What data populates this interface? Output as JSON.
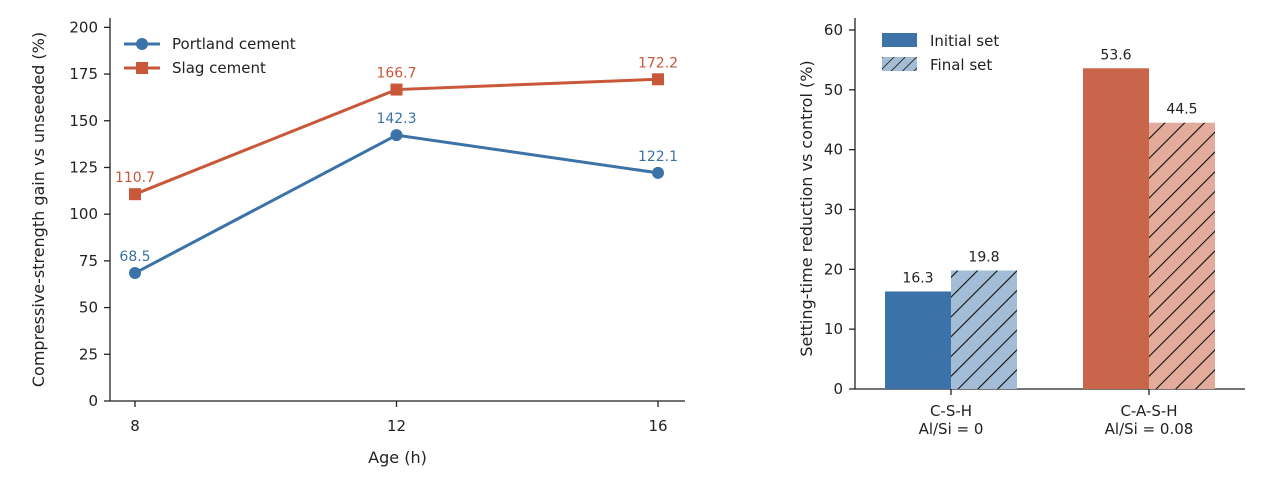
{
  "chart_data": [
    {
      "type": "line",
      "title": "",
      "xlabel": "Age (h)",
      "ylabel": "Compressive-strength gain vs unseeded (%)",
      "x": [
        8,
        12,
        16
      ],
      "xticks": [
        "8",
        "12",
        "16"
      ],
      "yticks": [
        "0",
        "25",
        "50",
        "75",
        "100",
        "125",
        "150",
        "175",
        "200"
      ],
      "ylim": [
        0,
        205
      ],
      "legend_position": "top-left",
      "series": [
        {
          "name": "Portland cement",
          "marker": "circle",
          "color": "#3b72a8",
          "values": [
            68.5,
            142.3,
            122.1
          ],
          "labels": [
            "68.5",
            "142.3",
            "122.1"
          ]
        },
        {
          "name": "Slag cement",
          "marker": "square",
          "color": "#c9573a",
          "values": [
            110.7,
            166.7,
            172.2
          ],
          "labels": [
            "110.7",
            "166.7",
            "172.2"
          ]
        }
      ]
    },
    {
      "type": "bar",
      "title": "",
      "xlabel": "",
      "ylabel": "Setting-time reduction vs control (%)",
      "categories": [
        "C-S-H\nAl/Si = 0",
        "C-A-S-H\nAl/Si = 0.08"
      ],
      "category_lines": [
        [
          "C-S-H",
          "Al/Si = 0"
        ],
        [
          "C-A-S-H",
          "Al/Si = 0.08"
        ]
      ],
      "yticks": [
        "0",
        "10",
        "20",
        "30",
        "40",
        "50",
        "60"
      ],
      "ylim": [
        0,
        62
      ],
      "legend_position": "top-left",
      "series": [
        {
          "name": "Initial set",
          "values": [
            16.3,
            53.6
          ],
          "labels": [
            "16.3",
            "53.6"
          ],
          "hatch": false
        },
        {
          "name": "Final set",
          "values": [
            19.8,
            44.5
          ],
          "labels": [
            "19.8",
            "44.5"
          ],
          "hatch": true
        }
      ],
      "category_colors": [
        {
          "solid": "#3b72a8",
          "light": "#a3bdd6"
        },
        {
          "solid": "#c9654a",
          "light": "#e3ab9b"
        }
      ]
    }
  ]
}
